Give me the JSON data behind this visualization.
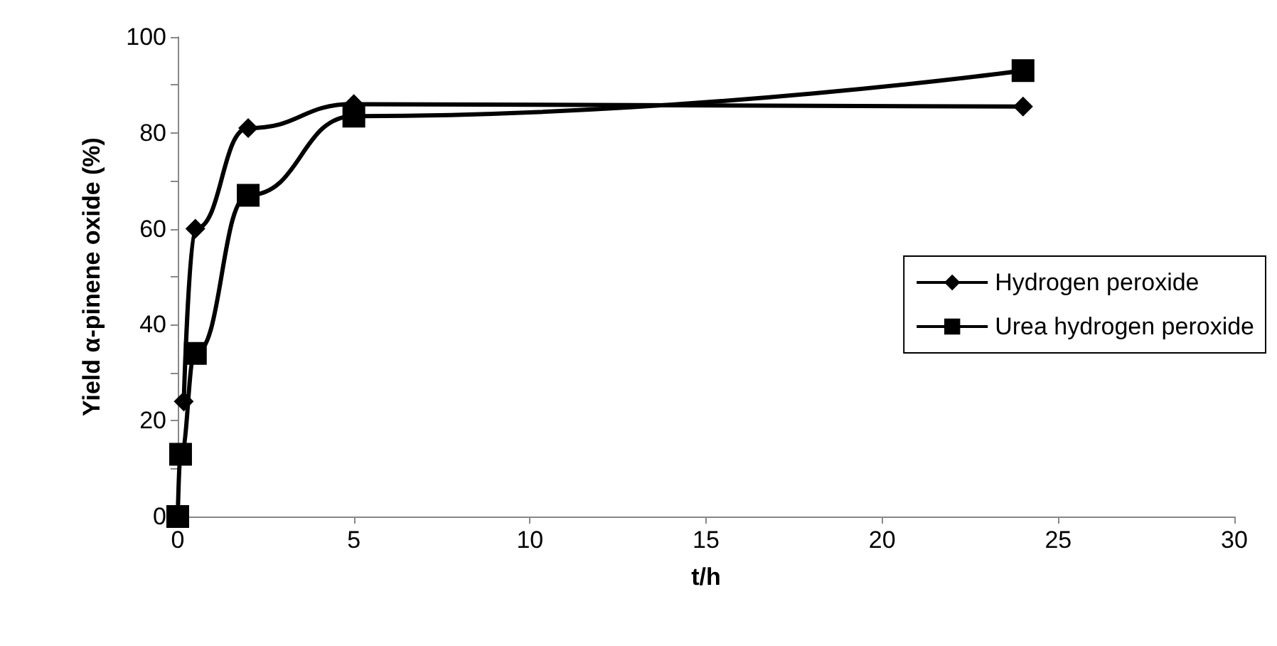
{
  "chart_data": {
    "type": "line",
    "xlabel": "t/h",
    "ylabel": "Yield α-pinene oxide (%)",
    "series": [
      {
        "name": "Hydrogen peroxide",
        "color": "#000000",
        "marker": "diamond",
        "x": [
          0.17,
          0.5,
          2,
          5,
          24
        ],
        "values": [
          24,
          60,
          81,
          86,
          85.5
        ]
      },
      {
        "name": "Urea hydrogen peroxide",
        "color": "#000000",
        "marker": "square",
        "x": [
          0,
          0.08,
          0.5,
          2,
          5,
          24
        ],
        "values": [
          0,
          13,
          34,
          67,
          83.5,
          93
        ]
      }
    ],
    "xlim": [
      0,
      30
    ],
    "xticks": [
      0,
      5,
      10,
      15,
      20,
      25,
      30
    ],
    "ylim": [
      0,
      100
    ],
    "yticks": [
      0,
      {
        "value": 10,
        "label": null
      },
      20,
      {
        "value": 30,
        "label": null
      },
      40,
      {
        "value": 50,
        "label": null
      },
      60,
      {
        "value": 70,
        "label": null
      },
      80,
      {
        "value": 90,
        "label": null
      },
      100
    ],
    "grid": false,
    "legend": "right",
    "line_style": "solid"
  }
}
